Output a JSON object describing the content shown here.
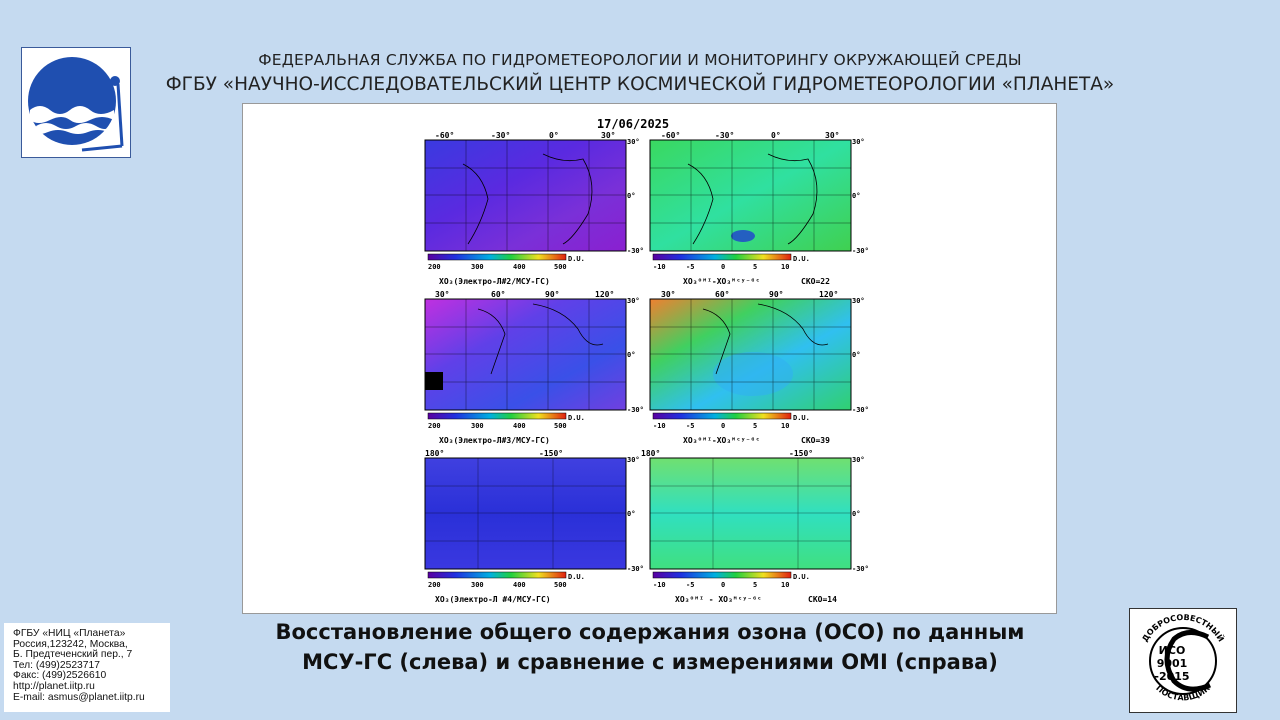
{
  "header": {
    "line1": "ФЕДЕРАЛЬНАЯ СЛУЖБА ПО ГИДРОМЕТЕОРОЛОГИИ И МОНИТОРИНГУ ОКРУЖАЮЩЕЙ СРЕДЫ",
    "line2": "ФГБУ «НАУЧНО-ИССЛЕДОВАТЕЛЬСКИЙ ЦЕНТР КОСМИЧЕСКОЙ ГИДРОМЕТЕОРОЛОГИИ «ПЛАНЕТА»"
  },
  "figure": {
    "date": "17/06/2025",
    "unit": "D.U.",
    "left_scale": [
      "200",
      "300",
      "400",
      "500"
    ],
    "right_scale": [
      "-10",
      "-5",
      "0",
      "5",
      "10"
    ],
    "lat_labels": [
      "30°",
      "0°",
      "-30°"
    ],
    "row1": {
      "lon_left": [
        "-60°",
        "-30°",
        "0°",
        "30°"
      ],
      "lon_right": [
        "-60°",
        "-30°",
        "0°",
        "30°"
      ],
      "left_caption": "XO₃(Электро-Л#2/МСУ-ГС)",
      "right_caption": "XO₃ᴼᴹᴵ-XO₃ᴹᶜʸ⁻ᴳᶜ",
      "sko": "СКО=22"
    },
    "row2": {
      "lon_left": [
        "30°",
        "60°",
        "90°",
        "120°"
      ],
      "lon_right": [
        "30°",
        "60°",
        "90°",
        "120°"
      ],
      "left_caption": "XO₃(Электро-Л#3/МСУ-ГС)",
      "right_caption": "XO₃ᴼᴹᴵ-XO₃ᴹᶜʸ⁻ᴳᶜ",
      "sko": "СКО=39"
    },
    "row3": {
      "lon_left": [
        "180°",
        "-150°"
      ],
      "lon_right": [
        "180°",
        "-150°"
      ],
      "left_caption": "XO₃(Электро-Л #4/МСУ-ГС)",
      "right_caption": "XO₃ᴼᴹᴵ - XO₃ᴹᶜʸ⁻ᴳᶜ",
      "sko": "СКО=14"
    }
  },
  "caption": {
    "line1": "Восстановление общего содержания озона (ОСО) по данным",
    "line2": "МСУ-ГС (слева) и сравнение с измерениями OMI (справа)"
  },
  "contact": [
    "ФГБУ «НИЦ «Планета»",
    "Россия,123242, Москва,",
    "Б. Предтеченский пер., 7",
    "Тел:   (499)2523717",
    "Факс: (499)2526610",
    "http://planet.iitp.ru",
    "E-mail: asmus@planet.iitp.ru"
  ],
  "iso": {
    "top_arc": "ДОБРОСОВЕСТНЫЙ",
    "line1": "ИСО",
    "line2": "9001",
    "line3": "-2015",
    "bottom_arc": "ПОСТАВЩИК"
  }
}
